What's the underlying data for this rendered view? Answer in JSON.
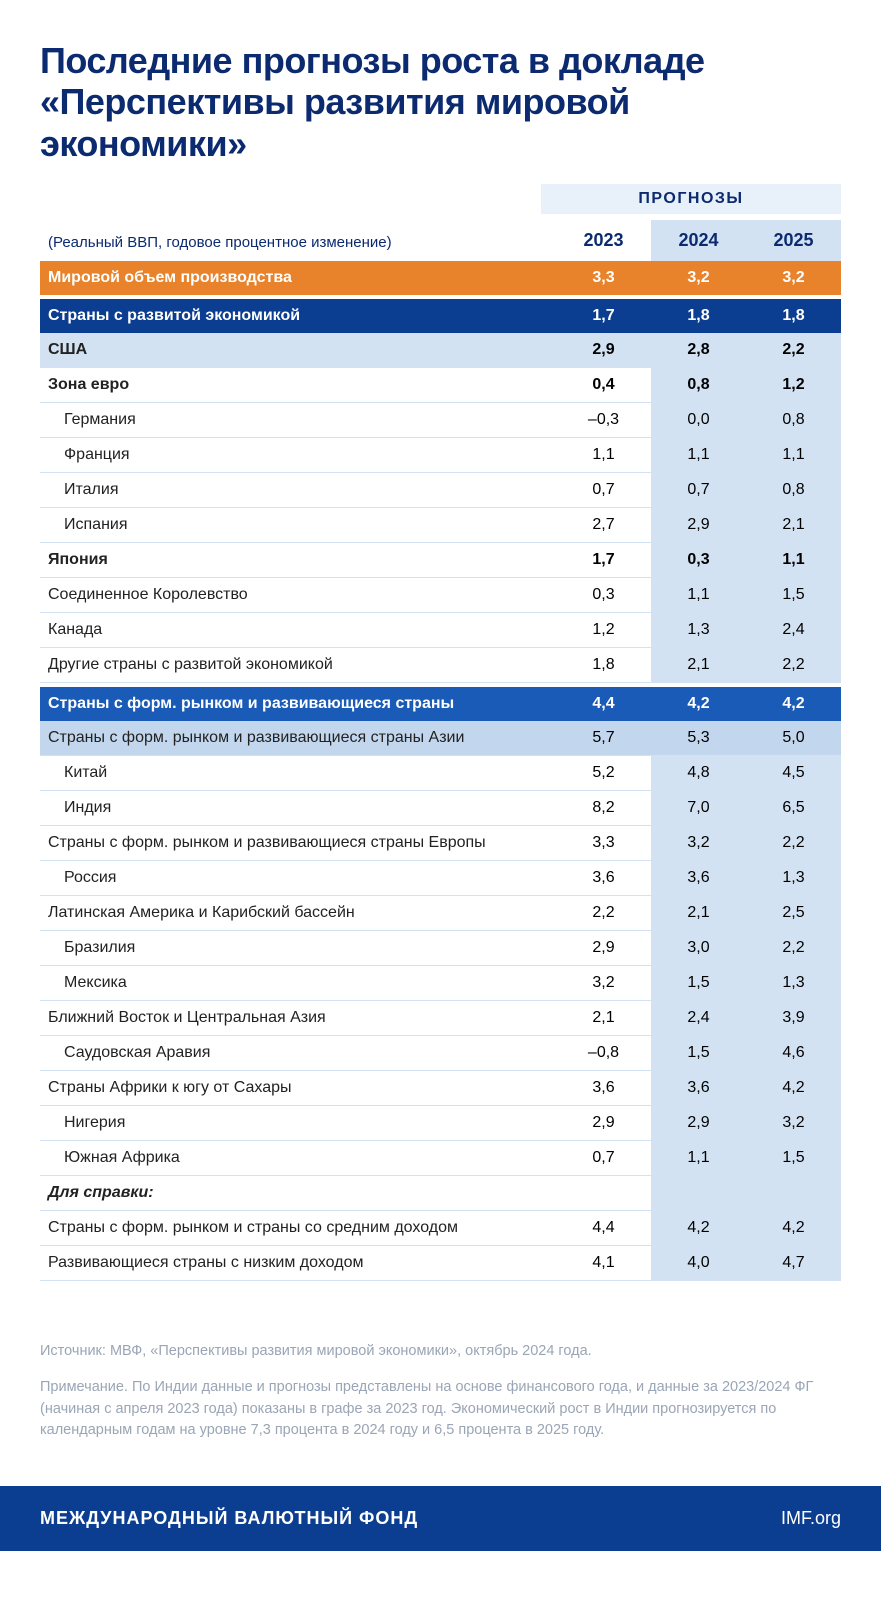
{
  "title": "Последние прогнозы роста в докладе «Перспективы развития мировой экономики»",
  "projections_label": "ПРОГНОЗЫ",
  "subtitle": "(Реальный ВВП, годовое процентное изменение)",
  "columns": [
    "2023",
    "2024",
    "2025"
  ],
  "rows": [
    {
      "label": "Мировой объем производства",
      "style": "orange",
      "vals": [
        "3,3",
        "3,2",
        "3,2"
      ]
    },
    {
      "label": "",
      "style": "gap",
      "vals": [
        "",
        "",
        ""
      ]
    },
    {
      "label": "Страны с развитой экономикой",
      "style": "navy",
      "vals": [
        "1,7",
        "1,8",
        "1,8"
      ]
    },
    {
      "label": "США",
      "style": "light-blue",
      "bold": true,
      "vals": [
        "2,9",
        "2,8",
        "2,2"
      ]
    },
    {
      "label": "Зона евро",
      "style": "",
      "bold": true,
      "vals": [
        "0,4",
        "0,8",
        "1,2"
      ]
    },
    {
      "label": "Германия",
      "style": "",
      "indent": 1,
      "vals": [
        "–0,3",
        "0,0",
        "0,8"
      ]
    },
    {
      "label": "Франция",
      "style": "",
      "indent": 1,
      "vals": [
        "1,1",
        "1,1",
        "1,1"
      ]
    },
    {
      "label": "Италия",
      "style": "",
      "indent": 1,
      "vals": [
        "0,7",
        "0,7",
        "0,8"
      ]
    },
    {
      "label": "Испания",
      "style": "",
      "indent": 1,
      "vals": [
        "2,7",
        "2,9",
        "2,1"
      ]
    },
    {
      "label": "Япония",
      "style": "",
      "bold": true,
      "vals": [
        "1,7",
        "0,3",
        "1,1"
      ]
    },
    {
      "label": "Соединенное Королевство",
      "style": "",
      "vals": [
        "0,3",
        "1,1",
        "1,5"
      ]
    },
    {
      "label": "Канада",
      "style": "",
      "vals": [
        "1,2",
        "1,3",
        "2,4"
      ]
    },
    {
      "label": "Другие страны с развитой экономикой",
      "style": "",
      "vals": [
        "1,8",
        "2,1",
        "2,2"
      ]
    },
    {
      "label": "",
      "style": "gap",
      "vals": [
        "",
        "",
        ""
      ]
    },
    {
      "label": "Страны с форм. рынком и развивающиеся страны",
      "style": "navy2",
      "vals": [
        "4,4",
        "4,2",
        "4,2"
      ]
    },
    {
      "label": "Страны с форм. рынком и развивающиеся страны Азии",
      "style": "light-blue2",
      "vals": [
        "5,7",
        "5,3",
        "5,0"
      ]
    },
    {
      "label": "Китай",
      "style": "",
      "indent": 1,
      "vals": [
        "5,2",
        "4,8",
        "4,5"
      ]
    },
    {
      "label": "Индия",
      "style": "",
      "indent": 1,
      "vals": [
        "8,2",
        "7,0",
        "6,5"
      ]
    },
    {
      "label": "Страны с форм. рынком и развивающиеся страны Европы",
      "style": "",
      "vals": [
        "3,3",
        "3,2",
        "2,2"
      ]
    },
    {
      "label": "Россия",
      "style": "",
      "indent": 1,
      "vals": [
        "3,6",
        "3,6",
        "1,3"
      ]
    },
    {
      "label": "Латинская Америка и Карибский бассейн",
      "style": "",
      "vals": [
        "2,2",
        "2,1",
        "2,5"
      ]
    },
    {
      "label": "Бразилия",
      "style": "",
      "indent": 1,
      "vals": [
        "2,9",
        "3,0",
        "2,2"
      ]
    },
    {
      "label": "Мексика",
      "style": "",
      "indent": 1,
      "vals": [
        "3,2",
        "1,5",
        "1,3"
      ]
    },
    {
      "label": "Ближний Восток и Центральная Азия",
      "style": "",
      "vals": [
        "2,1",
        "2,4",
        "3,9"
      ]
    },
    {
      "label": "Саудовская Аравия",
      "style": "",
      "indent": 1,
      "vals": [
        "–0,8",
        "1,5",
        "4,6"
      ]
    },
    {
      "label": "Страны Африки к югу от Сахары",
      "style": "",
      "vals": [
        "3,6",
        "3,6",
        "4,2"
      ]
    },
    {
      "label": "Нигерия",
      "style": "",
      "indent": 1,
      "vals": [
        "2,9",
        "2,9",
        "3,2"
      ]
    },
    {
      "label": "Южная Африка",
      "style": "",
      "indent": 1,
      "vals": [
        "0,7",
        "1,1",
        "1,5"
      ]
    },
    {
      "label": "Для справки:",
      "style": "",
      "italic": true,
      "vals": [
        "",
        "",
        ""
      ]
    },
    {
      "label": "Страны с форм. рынком и страны со средним доходом",
      "style": "",
      "vals": [
        "4,4",
        "4,2",
        "4,2"
      ]
    },
    {
      "label": "Развивающиеся страны с низким доходом",
      "style": "",
      "vals": [
        "4,1",
        "4,0",
        "4,7"
      ]
    }
  ],
  "source_note": "Источник: МВФ, «Перспективы развития мировой экономики», октябрь 2024 года.",
  "footnote": "Примечание. По Индии данные и прогнозы представлены на основе финансового года, и данные за 2023/2024 ФГ (начиная с апреля 2023 года) показаны в графе за 2023 год. Экономический рост в Индии прогнозируется по календарным годам на уровне 7,3 процента в 2024 году и 6,5 процента в 2025 году.",
  "footer_left": "МЕЖДУНАРОДНЫЙ ВАЛЮТНЫЙ ФОНД",
  "footer_right": "IMF.org",
  "colors": {
    "title": "#0b2a6f",
    "orange": "#e8832b",
    "navy": "#0b3d91",
    "navy2": "#1a5bb8",
    "light_blue": "#d3e2f3",
    "light_blue2": "#c2d7ed",
    "footnote": "#9aa5b5",
    "footer_bg": "#0b3d91"
  }
}
